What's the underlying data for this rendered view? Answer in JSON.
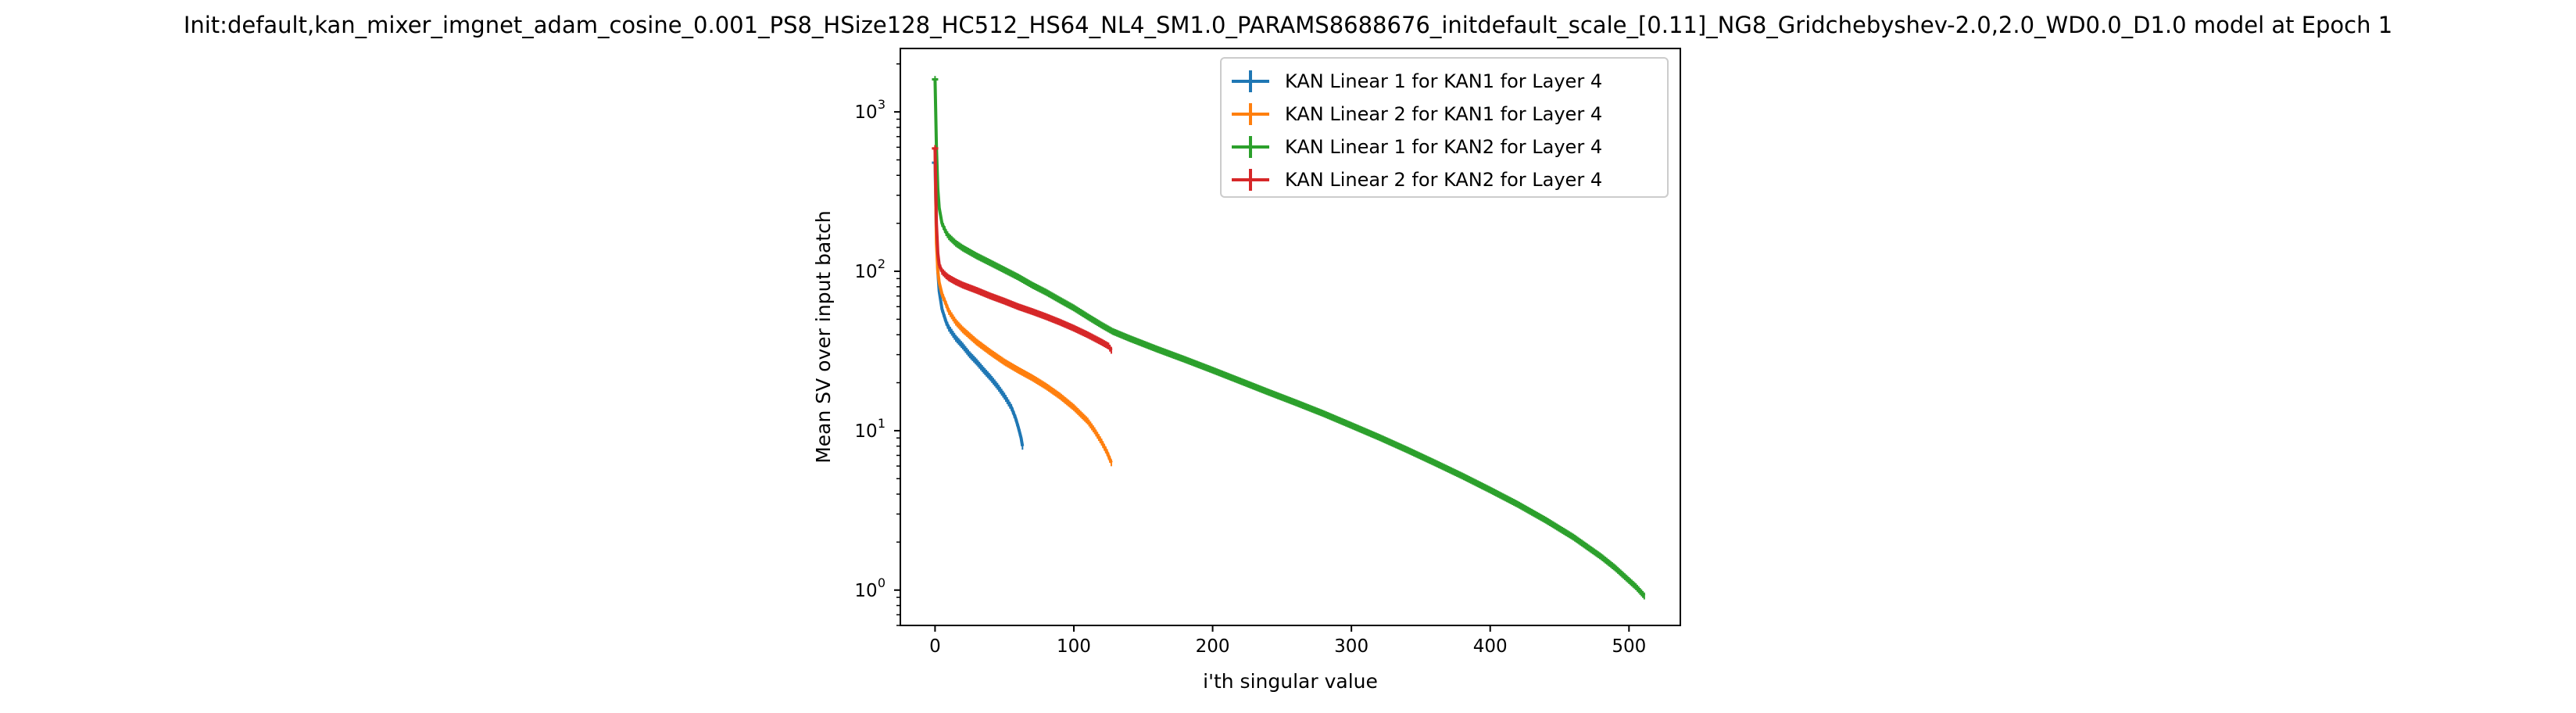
{
  "chart_data": {
    "type": "line",
    "title": "Init:default,kan_mixer_imgnet_adam_cosine_0.001_PS8_HSize128_HC512_HS64_NL4_SM1.0_PARAMS8688676_initdefault_scale_[0.11]_NG8_Gridchebyshev-2.0,2.0_WD0.0_D1.0 model at Epoch 1",
    "xlabel": "i'th singular value",
    "ylabel": "Mean SV over input batch",
    "xscale": "linear",
    "yscale": "log",
    "xlim": [
      -25,
      537
    ],
    "ylim": [
      0.6,
      2500
    ],
    "xticks": [
      0,
      100,
      200,
      300,
      400,
      500
    ],
    "xtick_labels": [
      "0",
      "100",
      "200",
      "300",
      "400",
      "500"
    ],
    "yticks": [
      1,
      10,
      100,
      1000
    ],
    "ytick_labels": [
      "10",
      "10",
      "10",
      "10"
    ],
    "ytick_exponents": [
      "0",
      "1",
      "2",
      "3"
    ],
    "grid": false,
    "legend_position": "upper right",
    "error_bars": true,
    "series": [
      {
        "name": "KAN Linear 1 for KAN1 for Layer 4",
        "color": "#1f77b4",
        "n": 64,
        "x": [
          0,
          1,
          2,
          3,
          5,
          8,
          10,
          15,
          20,
          25,
          30,
          35,
          40,
          45,
          50,
          55,
          58,
          60,
          62,
          63
        ],
        "y": [
          480,
          170,
          100,
          75,
          58,
          48,
          44,
          38,
          34,
          30,
          27,
          24,
          21.5,
          19,
          16.5,
          14,
          12,
          10.5,
          9,
          8
        ]
      },
      {
        "name": "KAN Linear 2 for KAN1 for Layer 4",
        "color": "#ff7f0e",
        "n": 128,
        "x": [
          0,
          1,
          2,
          3,
          5,
          8,
          10,
          15,
          20,
          30,
          40,
          50,
          60,
          70,
          80,
          90,
          100,
          110,
          115,
          120,
          124,
          127
        ],
        "y": [
          590,
          150,
          100,
          85,
          72,
          62,
          56,
          48,
          43,
          36,
          31,
          27,
          24,
          21.5,
          19,
          16.5,
          14,
          11.5,
          10,
          8.5,
          7.3,
          6.3
        ]
      },
      {
        "name": "KAN Linear 1 for KAN2 for Layer 4",
        "color": "#2ca02c",
        "n": 512,
        "x": [
          0,
          1,
          2,
          3,
          5,
          8,
          10,
          15,
          20,
          30,
          40,
          50,
          60,
          70,
          80,
          90,
          100,
          110,
          120,
          128,
          140,
          160,
          180,
          200,
          220,
          240,
          260,
          280,
          300,
          320,
          340,
          360,
          380,
          400,
          420,
          440,
          460,
          480,
          490,
          500,
          505,
          511
        ],
        "y": [
          1600,
          600,
          330,
          250,
          200,
          175,
          165,
          150,
          140,
          125,
          113,
          102,
          92,
          82,
          74,
          66,
          59,
          52,
          46,
          42,
          38,
          32.5,
          28,
          24,
          20.5,
          17.5,
          15,
          12.8,
          10.8,
          9.1,
          7.6,
          6.3,
          5.2,
          4.25,
          3.45,
          2.75,
          2.15,
          1.62,
          1.38,
          1.15,
          1.05,
          0.92
        ]
      },
      {
        "name": "KAN Linear 2 for KAN2 for Layer 4",
        "color": "#d62728",
        "n": 128,
        "x": [
          0,
          1,
          2,
          3,
          5,
          8,
          10,
          15,
          20,
          30,
          40,
          50,
          60,
          70,
          80,
          90,
          100,
          110,
          120,
          125,
          127
        ],
        "y": [
          590,
          200,
          130,
          110,
          100,
          94,
          91,
          86,
          82,
          76,
          70,
          65,
          60,
          56,
          52,
          48,
          44,
          40,
          36,
          34,
          32
        ]
      }
    ]
  }
}
